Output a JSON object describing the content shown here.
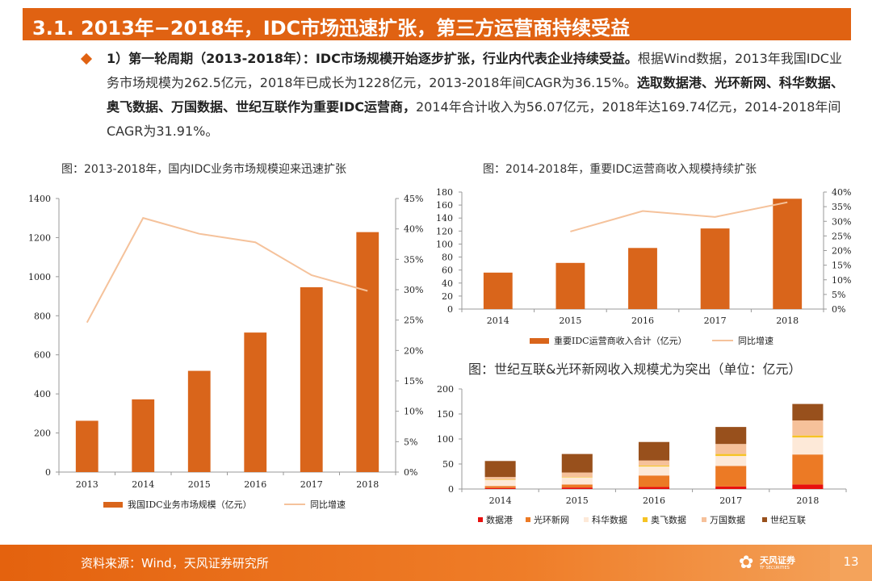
{
  "header": {
    "title": "3.1. 2013年−2018年，IDC市场迅速扩张，第三方运营商持续受益"
  },
  "body": {
    "p1_bold": "1）第一轮周期（2013-2018年）：IDC市场规模开始逐步扩张，行业内代表企业持续受益。",
    "p1_rest": "根据Wind数据，2013年我国IDC业务市场规模为262.5亿元，2018年已成长为1228亿元，2013-2018年间CAGR为36.15%。",
    "p2_bold": "选取数据港、光环新网、科华数据、奥飞数据、万国数据、世纪互联作为重要IDC运营商，",
    "p2_rest": "2014年合计收入为56.07亿元，2018年达169.74亿元，2014-2018年间CAGR为31.91%。"
  },
  "captions": {
    "chart1": "图：2013-2018年，国内IDC业务市场规模迎来迅速扩张",
    "chart2": "图：2014-2018年，重要IDC运营商收入规模持续扩张",
    "chart3": "图：世纪互联&光环新网收入规模尤为突出（单位：亿元）"
  },
  "footer": {
    "source": "资料来源：Wind，天风证券研究所",
    "page": "13",
    "logo_cn": "天风证券",
    "logo_en": "TF SECURITIES"
  },
  "colors": {
    "accent": "#e06212",
    "bar": "#d9651b",
    "line": "#f5c29b"
  },
  "chart_data": [
    {
      "type": "bar",
      "categories": [
        "2013",
        "2014",
        "2015",
        "2016",
        "2017",
        "2018"
      ],
      "series": [
        {
          "name": "我国IDC业务市场规模（亿元）",
          "values": [
            262.5,
            372,
            518,
            714,
            946,
            1228
          ],
          "axis": "left"
        },
        {
          "name": "同比增速",
          "type": "line",
          "values": [
            24.6,
            41.8,
            39.2,
            37.8,
            32.4,
            29.8
          ],
          "axis": "right"
        }
      ],
      "ylim": [
        0,
        1400
      ],
      "yticks": [
        "0",
        "200",
        "400",
        "600",
        "800",
        "1000",
        "1200",
        "1400"
      ],
      "ylim_right": [
        0,
        45
      ],
      "yticks_right": [
        "0%",
        "5%",
        "10%",
        "15%",
        "20%",
        "25%",
        "30%",
        "35%",
        "40%",
        "45%"
      ],
      "legend": "bottom"
    },
    {
      "type": "bar",
      "categories": [
        "2014",
        "2015",
        "2016",
        "2017",
        "2018"
      ],
      "series": [
        {
          "name": "重要IDC运营商收入合计（亿元）",
          "values": [
            56.07,
            71,
            94,
            124,
            169.74
          ],
          "axis": "left"
        },
        {
          "name": "同比增速",
          "type": "line",
          "values": [
            null,
            26.5,
            33.5,
            31.5,
            36.5
          ],
          "axis": "right"
        }
      ],
      "ylim": [
        0,
        180
      ],
      "yticks": [
        "0",
        "20",
        "40",
        "60",
        "80",
        "100",
        "120",
        "140",
        "160",
        "180"
      ],
      "ylim_right": [
        0,
        40
      ],
      "yticks_right": [
        "0%",
        "5%",
        "10%",
        "15%",
        "20%",
        "25%",
        "30%",
        "35%",
        "40%"
      ],
      "legend": "bottom"
    },
    {
      "type": "bar",
      "stacked": true,
      "categories": [
        "2014",
        "2015",
        "2016",
        "2017",
        "2018"
      ],
      "series": [
        {
          "name": "数据港",
          "values": [
            2,
            3,
            4,
            5,
            9
          ],
          "color": "#e8100e"
        },
        {
          "name": "光环新网",
          "values": [
            4,
            6,
            23,
            41,
            60
          ],
          "color": "#ec7a25"
        },
        {
          "name": "科华数据",
          "values": [
            12,
            14,
            18,
            20,
            34
          ],
          "color": "#fde9d8"
        },
        {
          "name": "奥飞数据",
          "values": [
            1,
            1,
            2,
            4,
            4
          ],
          "color": "#f6c324"
        },
        {
          "name": "万国数据",
          "values": [
            5,
            9,
            10,
            20,
            30
          ],
          "color": "#f6c19a"
        },
        {
          "name": "世纪互联",
          "values": [
            32,
            37,
            37,
            34,
            33
          ],
          "color": "#98501c"
        }
      ],
      "ylim": [
        0,
        200
      ],
      "yticks": [
        "0",
        "50",
        "100",
        "150",
        "200"
      ],
      "legend": "bottom"
    }
  ]
}
